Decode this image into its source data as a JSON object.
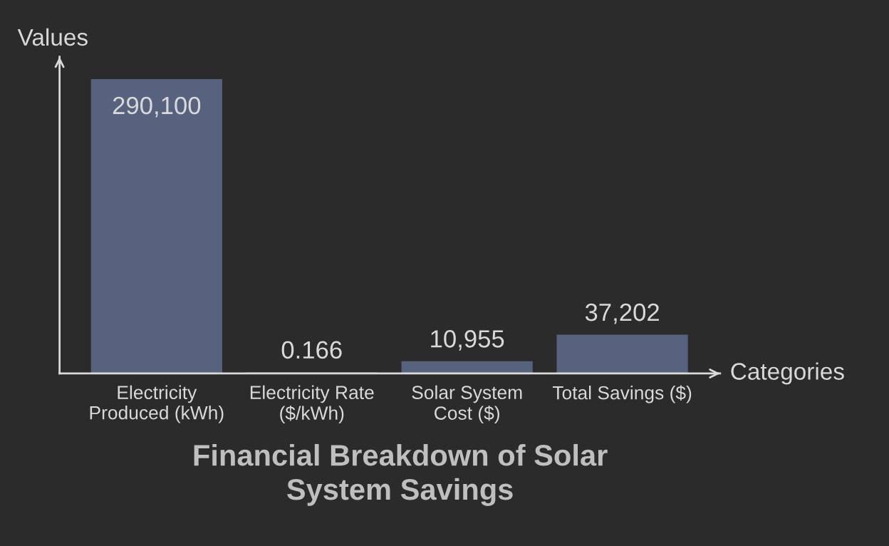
{
  "chart_data": {
    "type": "bar",
    "title": "Financial Breakdown of Solar\nSystem Savings",
    "xlabel": "Categories",
    "ylabel": "Values",
    "categories": [
      "Electricity\nProduced (kWh)",
      "Electricity Rate\n($/kWh)",
      "Solar System\nCost ($)",
      "Total Savings ($)"
    ],
    "values": [
      290100,
      0.166,
      10955,
      37202
    ],
    "value_labels": [
      "290,100",
      "0.166",
      "10,955",
      "37,202"
    ],
    "color": "#56627e",
    "grid": false
  }
}
